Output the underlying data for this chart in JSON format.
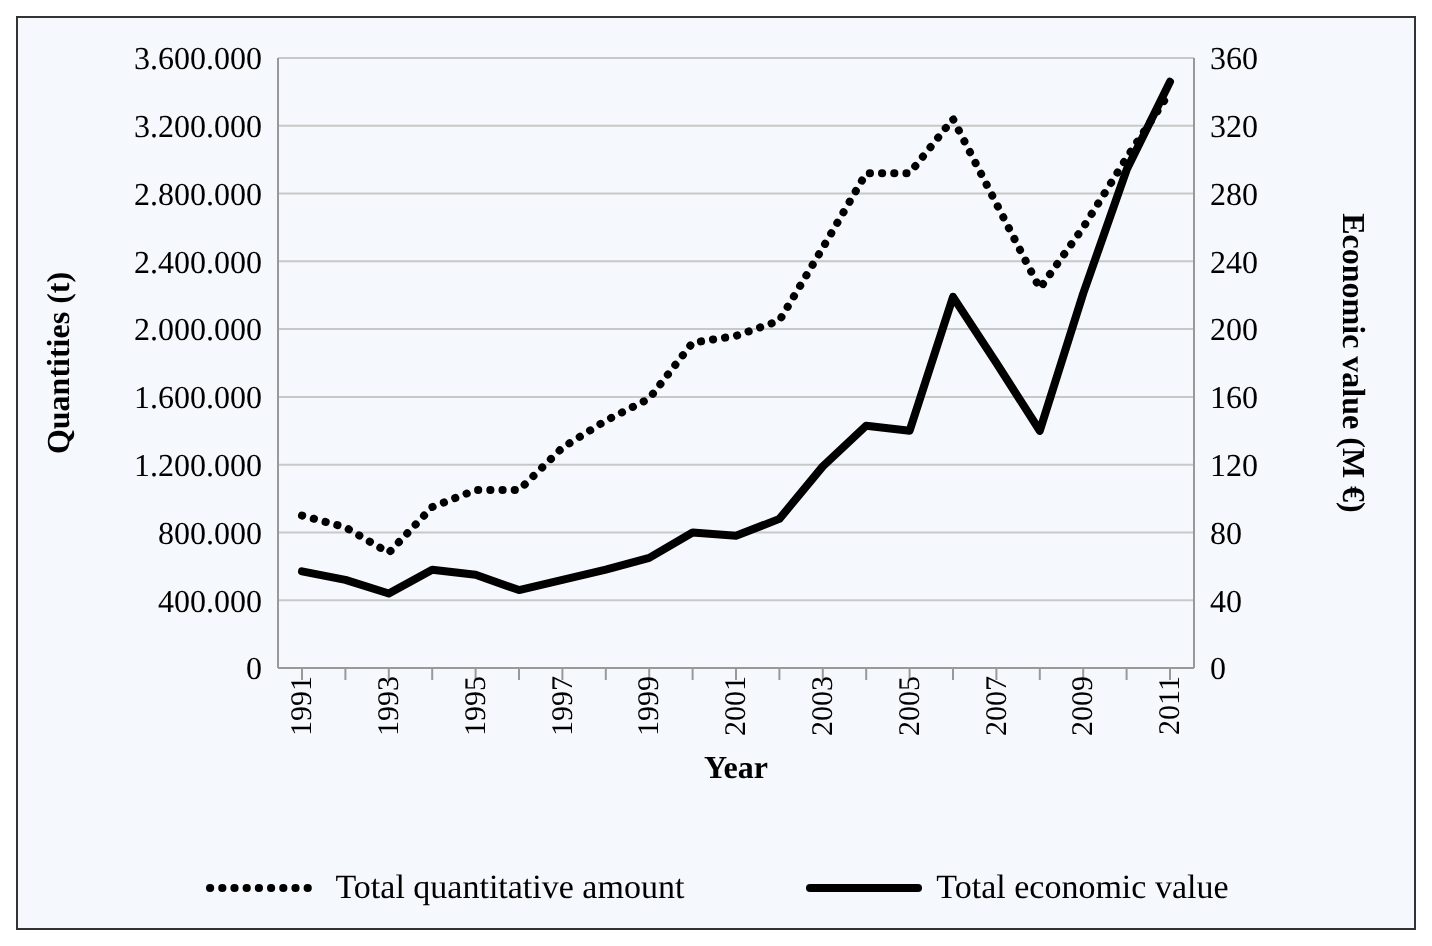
{
  "chart_data": {
    "type": "line",
    "xlabel": "Year",
    "ylabel": "Quantities (t)",
    "y2label": "Economic value (M €)",
    "categories": [
      "1991",
      null,
      "1993",
      null,
      "1995",
      null,
      "1997",
      null,
      "1999",
      null,
      "2001",
      null,
      "2003",
      null,
      "2005",
      null,
      "2007",
      null,
      "2009",
      null,
      "2011"
    ],
    "series": [
      {
        "name": "Total quantitative amount",
        "color": "#000000",
        "line_style": "dotted",
        "values": [
          900000,
          830000,
          680000,
          950000,
          1050000,
          1050000,
          1300000,
          1460000,
          1590000,
          1920000,
          1960000,
          2050000,
          2480000,
          2920000,
          2920000,
          3240000,
          2740000,
          2240000,
          2600000,
          3010000,
          3400000
        ]
      },
      {
        "name": "Total economic value",
        "color": "#000000",
        "line_style": "solid",
        "axis": "y2",
        "values": [
          57,
          52,
          44,
          58,
          55,
          46,
          52,
          58,
          65,
          80,
          78,
          88,
          119,
          143,
          140,
          219,
          180,
          140,
          221,
          294,
          346
        ]
      }
    ],
    "ylim": [
      0,
      3600000
    ],
    "yticks": [
      0,
      {
        "value": 400000,
        "label": "400.000"
      },
      {
        "value": 800000,
        "label": "800.000"
      },
      {
        "value": 1200000,
        "label": "1.200.000"
      },
      {
        "value": 1600000,
        "label": "1.600.000"
      },
      {
        "value": 2000000,
        "label": "2.000.000"
      },
      {
        "value": 2400000,
        "label": "2.400.000"
      },
      {
        "value": 2800000,
        "label": "2.800.000"
      },
      {
        "value": 3200000,
        "label": "3.200.000"
      },
      {
        "value": 3600000,
        "label": "3.600.000"
      }
    ],
    "y2lim": [
      0,
      360
    ],
    "y2ticks": [
      0,
      40,
      80,
      120,
      160,
      200,
      240,
      280,
      320,
      360
    ],
    "grid": "y",
    "legend": "bottom",
    "marker": "none"
  }
}
